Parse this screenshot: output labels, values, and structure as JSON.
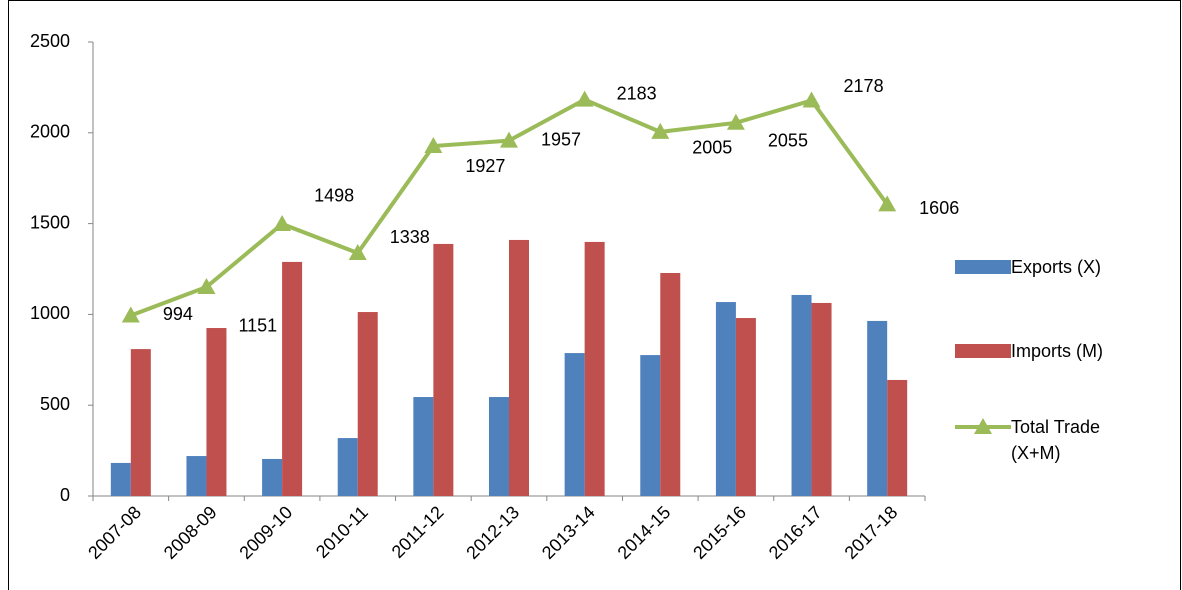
{
  "chart_data": {
    "type": "bar_line",
    "categories": [
      "2007-08",
      "2008-09",
      "2009-10",
      "2010-11",
      "2011-12",
      "2012-13",
      "2013-14",
      "2014-15",
      "2015-16",
      "2016-17",
      "2017-18"
    ],
    "series": [
      {
        "name": "Exports (X)",
        "color": "#4f81bd",
        "type": "bar",
        "values": [
          182,
          220,
          204,
          319,
          545,
          545,
          787,
          776,
          1068,
          1107,
          964
        ]
      },
      {
        "name": "Imports (M)",
        "color": "#c0504d",
        "type": "bar",
        "values": [
          809,
          925,
          1289,
          1013,
          1388,
          1410,
          1399,
          1228,
          980,
          1063,
          639
        ]
      },
      {
        "name": "Total Trade (X+M)",
        "color": "#9bbb59",
        "type": "line",
        "values": [
          994,
          1151,
          1498,
          1338,
          1927,
          1957,
          2183,
          2005,
          2055,
          2178,
          1606
        ]
      }
    ],
    "ylim": [
      0,
      2500
    ],
    "yticks": [
      0,
      500,
      1000,
      1500,
      2000,
      2500
    ],
    "legend": "right",
    "grid": false
  }
}
